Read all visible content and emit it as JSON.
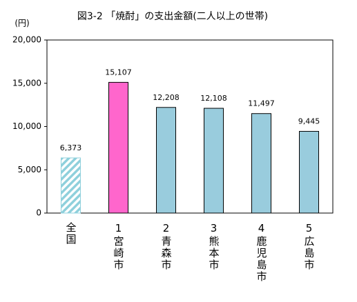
{
  "chart_data": {
    "type": "bar",
    "title": "図3-2 「焼酎」の支出金額(二人以上の世帯)",
    "y_axis_label": "(円)",
    "categories": [
      "全国",
      "1宮崎市",
      "2青森市",
      "3熊本市",
      "4鹿児島市",
      "5広島市"
    ],
    "values": [
      6373,
      15107,
      12208,
      12108,
      11497,
      9445
    ],
    "value_labels": [
      "6,373",
      "15,107",
      "12,208",
      "12,108",
      "11,497",
      "9,445"
    ],
    "colors": [
      "#8fd0dc",
      "#ff66cc",
      "#99ccdd",
      "#99ccdd",
      "#99ccdd",
      "#99ccdd"
    ],
    "hatched": [
      true,
      false,
      false,
      false,
      false,
      false
    ],
    "ylim": [
      0,
      20000
    ],
    "yticks": [
      0,
      {
        "value": 5000,
        "label": "5,000"
      },
      {
        "value": 10000,
        "label": "10,000"
      },
      {
        "value": 15000,
        "label": "15,000"
      },
      {
        "value": 20000,
        "label": "20,000"
      }
    ],
    "grid": false
  }
}
